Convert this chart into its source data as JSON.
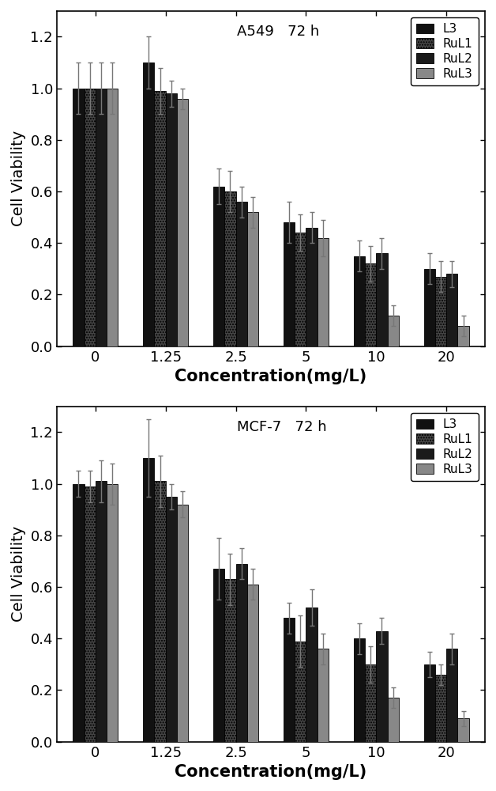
{
  "concentrations": [
    "0",
    "1.25",
    "2.5",
    "5",
    "10",
    "20"
  ],
  "top_panel": {
    "title": "A549   72 h",
    "L3": [
      1.0,
      1.1,
      0.62,
      0.48,
      0.35,
      0.3
    ],
    "RuL1": [
      1.0,
      0.99,
      0.6,
      0.44,
      0.32,
      0.27
    ],
    "RuL2": [
      1.0,
      0.98,
      0.56,
      0.46,
      0.36,
      0.28
    ],
    "RuL3": [
      1.0,
      0.96,
      0.52,
      0.42,
      0.12,
      0.08
    ],
    "L3_err": [
      0.1,
      0.1,
      0.07,
      0.08,
      0.06,
      0.06
    ],
    "RuL1_err": [
      0.1,
      0.09,
      0.08,
      0.07,
      0.07,
      0.06
    ],
    "RuL2_err": [
      0.1,
      0.05,
      0.06,
      0.06,
      0.06,
      0.05
    ],
    "RuL3_err": [
      0.1,
      0.04,
      0.06,
      0.07,
      0.04,
      0.04
    ]
  },
  "bottom_panel": {
    "title": "MCF-7   72 h",
    "L3": [
      1.0,
      1.1,
      0.67,
      0.48,
      0.4,
      0.3
    ],
    "RuL1": [
      0.99,
      1.01,
      0.63,
      0.39,
      0.3,
      0.26
    ],
    "RuL2": [
      1.01,
      0.95,
      0.69,
      0.52,
      0.43,
      0.36
    ],
    "RuL3": [
      1.0,
      0.92,
      0.61,
      0.36,
      0.17,
      0.09
    ],
    "L3_err": [
      0.05,
      0.15,
      0.12,
      0.06,
      0.06,
      0.05
    ],
    "RuL1_err": [
      0.06,
      0.1,
      0.1,
      0.1,
      0.07,
      0.04
    ],
    "RuL2_err": [
      0.08,
      0.05,
      0.06,
      0.07,
      0.05,
      0.06
    ],
    "RuL3_err": [
      0.08,
      0.05,
      0.06,
      0.06,
      0.04,
      0.03
    ]
  },
  "colors": {
    "L3": "#111111",
    "RuL1": "#444444",
    "RuL2": "#1a1a1a",
    "RuL3": "#888888"
  },
  "hatches": {
    "L3": "",
    "RuL1": ".....",
    "RuL2": "",
    "RuL3": ""
  },
  "bar_width": 0.16,
  "ylabel": "Cell Viability",
  "xlabel": "Concentration(mg/L)",
  "ylim": [
    0.0,
    1.3
  ],
  "yticks": [
    0.0,
    0.2,
    0.4,
    0.6,
    0.8,
    1.0,
    1.2
  ]
}
